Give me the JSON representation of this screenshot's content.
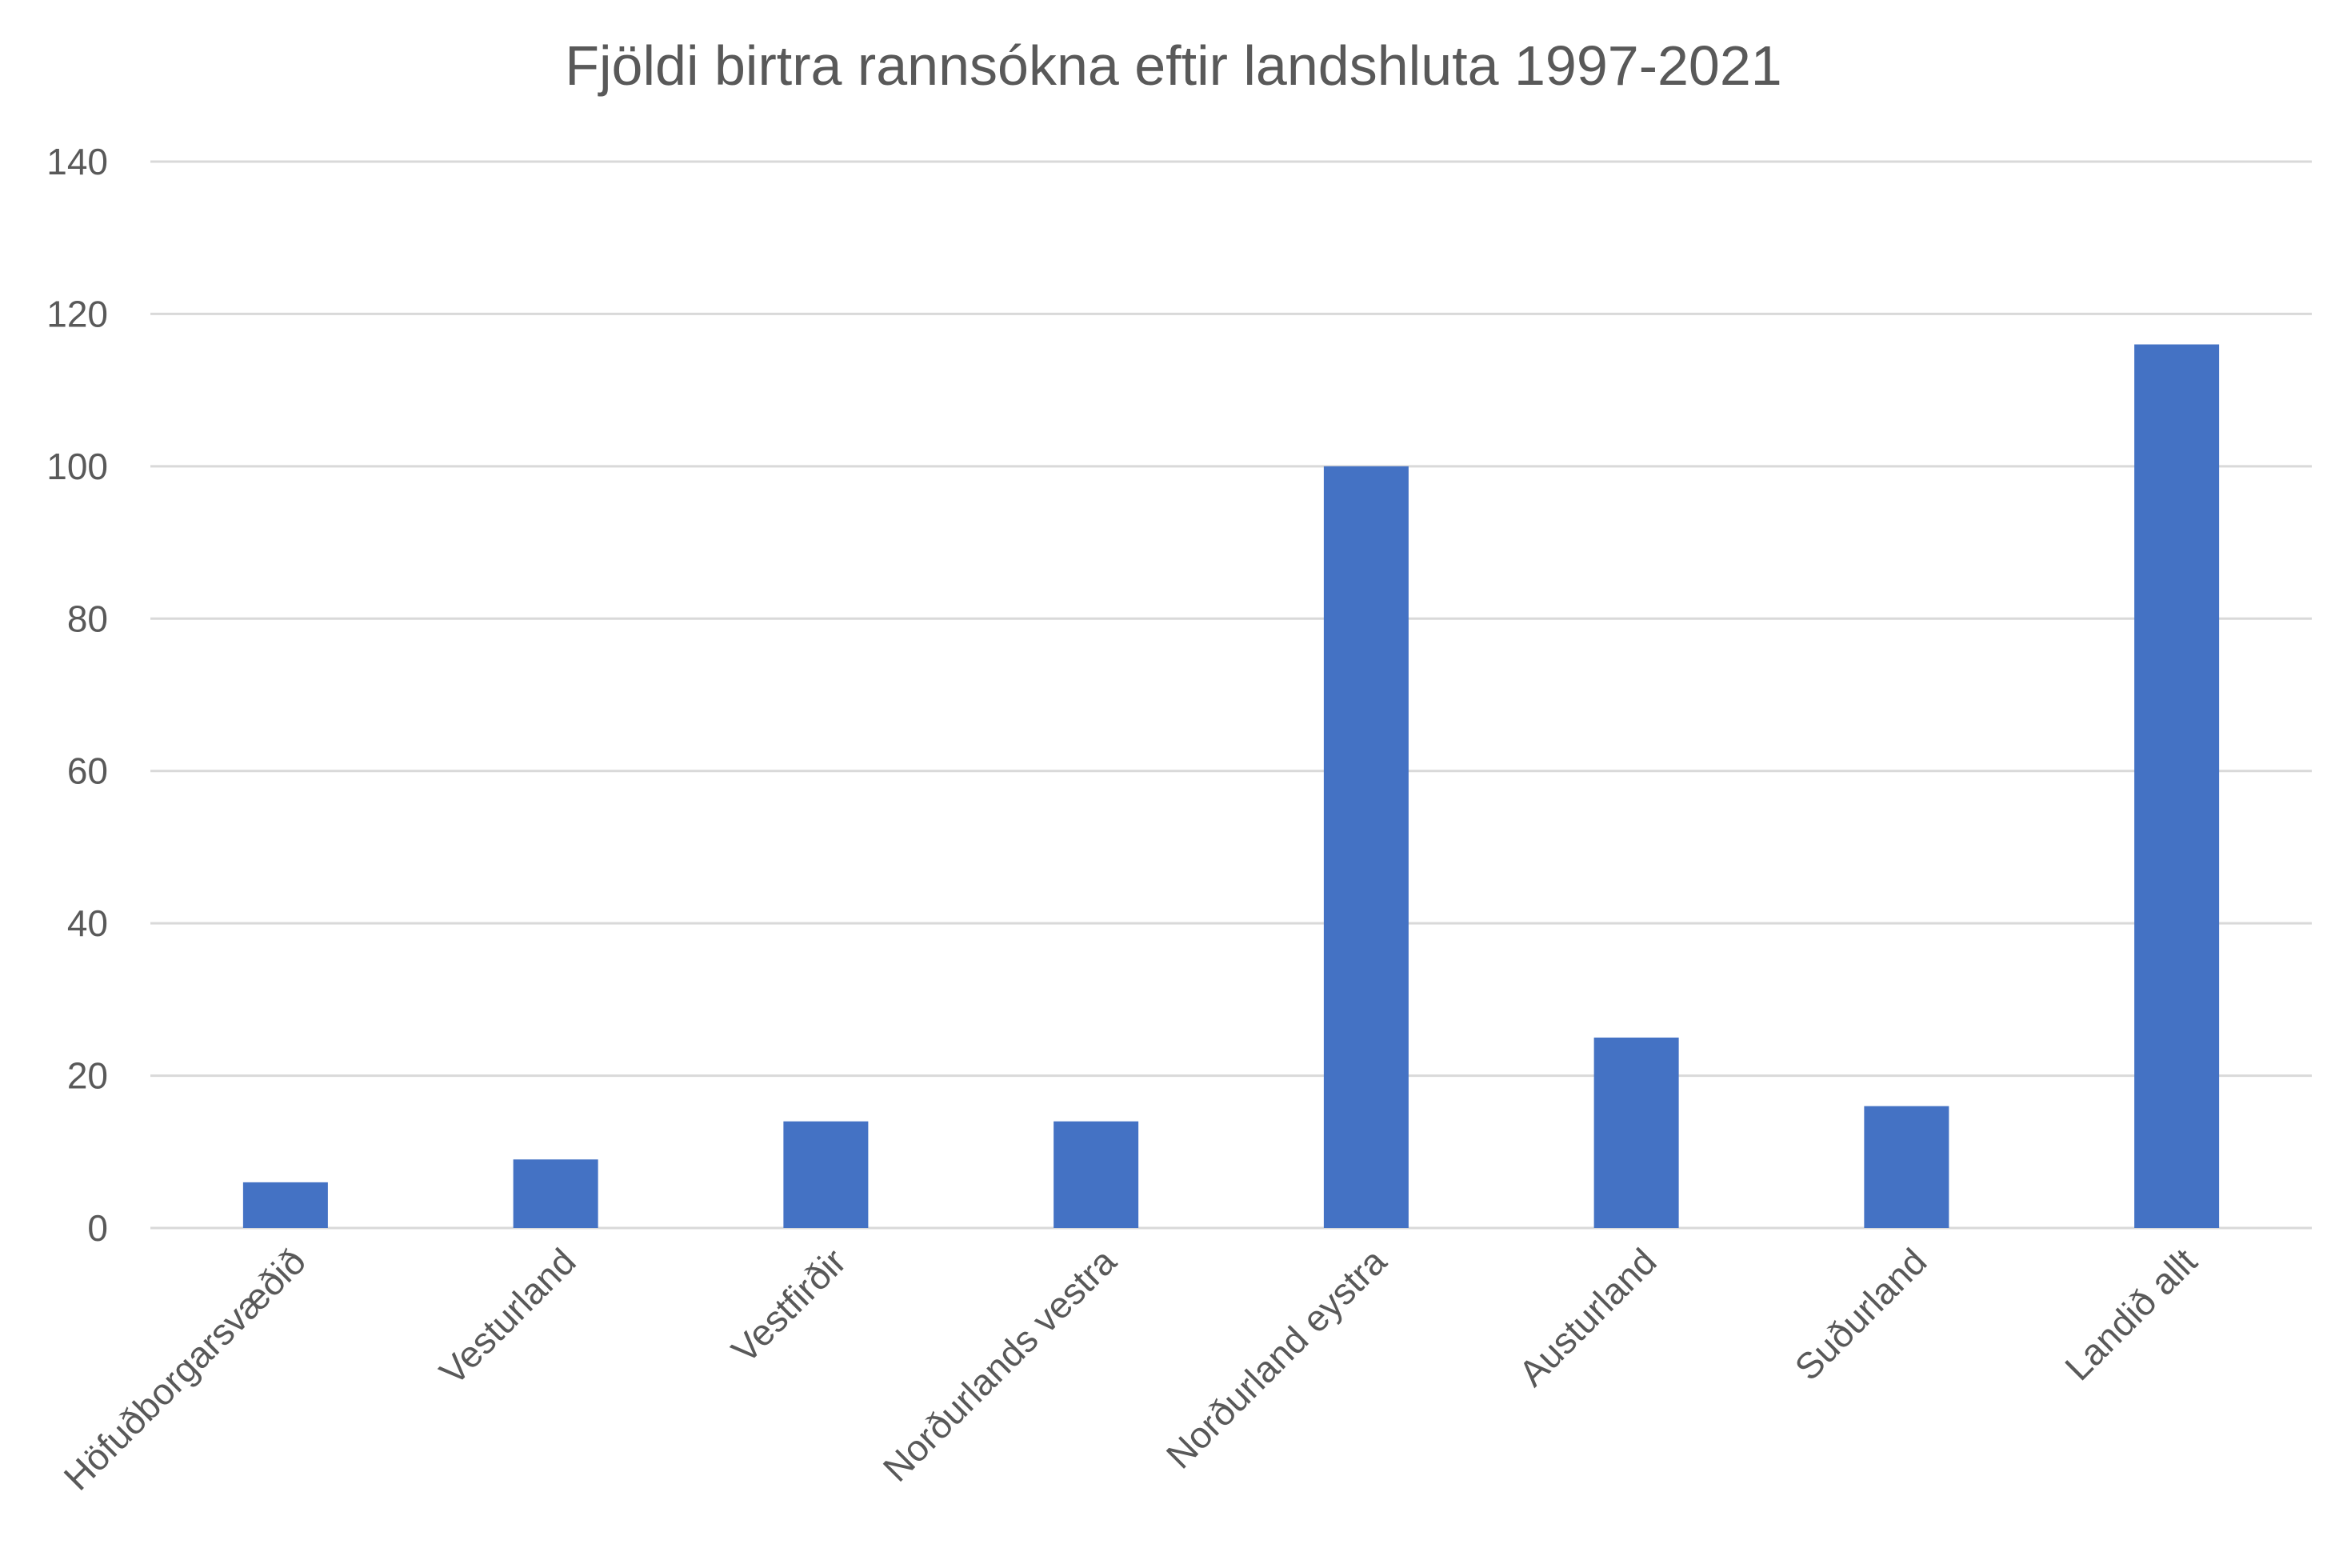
{
  "chart_data": {
    "type": "bar",
    "title": "Fjöldi birtra rannsókna eftir landshluta 1997-2021",
    "xlabel": "",
    "ylabel": "",
    "ylim": [
      0,
      140
    ],
    "yticks": [
      0,
      20,
      40,
      60,
      80,
      100,
      120,
      140
    ],
    "grid": true,
    "legend": "none",
    "categories": [
      "Höfuðborgarsvæðið",
      "Vesturland",
      "Vestfirðir",
      "Norðurlands vestra",
      "Norðurland eystra",
      "Austurland",
      "Suðurland",
      "Landið allt"
    ],
    "values": [
      6,
      9,
      14,
      14,
      100,
      25,
      16,
      116
    ],
    "colors": {
      "bar": "#4472c4",
      "grid": "#d9d9d9",
      "text": "#595959"
    }
  }
}
